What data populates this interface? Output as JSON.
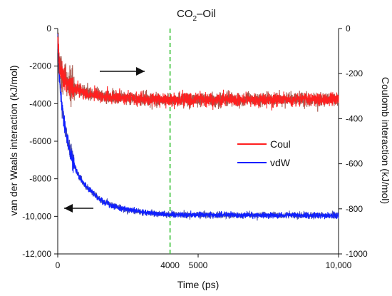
{
  "chart_data": {
    "type": "line",
    "title": {
      "main": "CO",
      "sub": "2",
      "suffix": "–Oil"
    },
    "xlabel": "Time (ps)",
    "ylabel_left": "van der Waals interaction (kJ/mol)",
    "ylabel_right": "Coulomb interaction (kJ/mol)",
    "xlim": [
      0,
      10000
    ],
    "ylim_left": [
      -12000,
      0
    ],
    "ylim_right": [
      -1000,
      0
    ],
    "grid": false,
    "legend_placement": "center-right",
    "x_ticks": [
      {
        "value": 0,
        "label": "0"
      },
      {
        "value": 5000,
        "label": "5000"
      },
      {
        "value": 10000,
        "label": "10,000"
      }
    ],
    "y_ticks_left": [
      {
        "value": 0,
        "label": "0"
      },
      {
        "value": -2000,
        "label": "-2000"
      },
      {
        "value": -4000,
        "label": "-4000"
      },
      {
        "value": -6000,
        "label": "-6000"
      },
      {
        "value": -8000,
        "label": "-8000"
      },
      {
        "value": -10000,
        "label": "-10,000"
      },
      {
        "value": -12000,
        "label": "-12,000"
      }
    ],
    "y_ticks_right": [
      {
        "value": 0,
        "label": "0"
      },
      {
        "value": -200,
        "label": "-200"
      },
      {
        "value": -400,
        "label": "-400"
      },
      {
        "value": -600,
        "label": "-600"
      },
      {
        "value": -800,
        "label": "-800"
      },
      {
        "value": -1000,
        "label": "-1000"
      }
    ],
    "reference_line": {
      "x": 4000,
      "label": "4000",
      "color": "#35c132",
      "style": "dashed"
    },
    "series": [
      {
        "name": "Coul",
        "axis": "right",
        "color": "#ff1f1f",
        "x": [
          0,
          50,
          100,
          200,
          300,
          400,
          500,
          700,
          1000,
          1500,
          2000,
          3000,
          4000,
          5000,
          6000,
          7000,
          8000,
          9000,
          10000
        ],
        "y": [
          -30,
          -140,
          -190,
          -220,
          -235,
          -245,
          -255,
          -270,
          -285,
          -300,
          -305,
          -312,
          -315,
          -315,
          -315,
          -316,
          -315,
          -315,
          -315
        ]
      },
      {
        "name": "vdW",
        "axis": "left",
        "color": "#0f1fff",
        "x": [
          0,
          50,
          100,
          200,
          300,
          400,
          500,
          700,
          1000,
          1500,
          2000,
          2500,
          3000,
          3500,
          4000,
          5000,
          6000,
          7000,
          8000,
          9000,
          10000
        ],
        "y": [
          -300,
          -2500,
          -3500,
          -4700,
          -5600,
          -6300,
          -6900,
          -7700,
          -8400,
          -9100,
          -9450,
          -9650,
          -9780,
          -9850,
          -9900,
          -9920,
          -9930,
          -9940,
          -9940,
          -9950,
          -9950
        ]
      }
    ],
    "annotations": [
      {
        "type": "arrow",
        "direction": "right",
        "target_axis": "right"
      },
      {
        "type": "arrow",
        "direction": "left",
        "target_axis": "left"
      }
    ],
    "colors": {
      "axis": "#111111",
      "coul": "#ff1f1f",
      "coul_shadow": "#8a1d0f",
      "vdw": "#0f1fff",
      "vdw_shadow": "#0a0f8a",
      "reference": "#35c132"
    }
  }
}
